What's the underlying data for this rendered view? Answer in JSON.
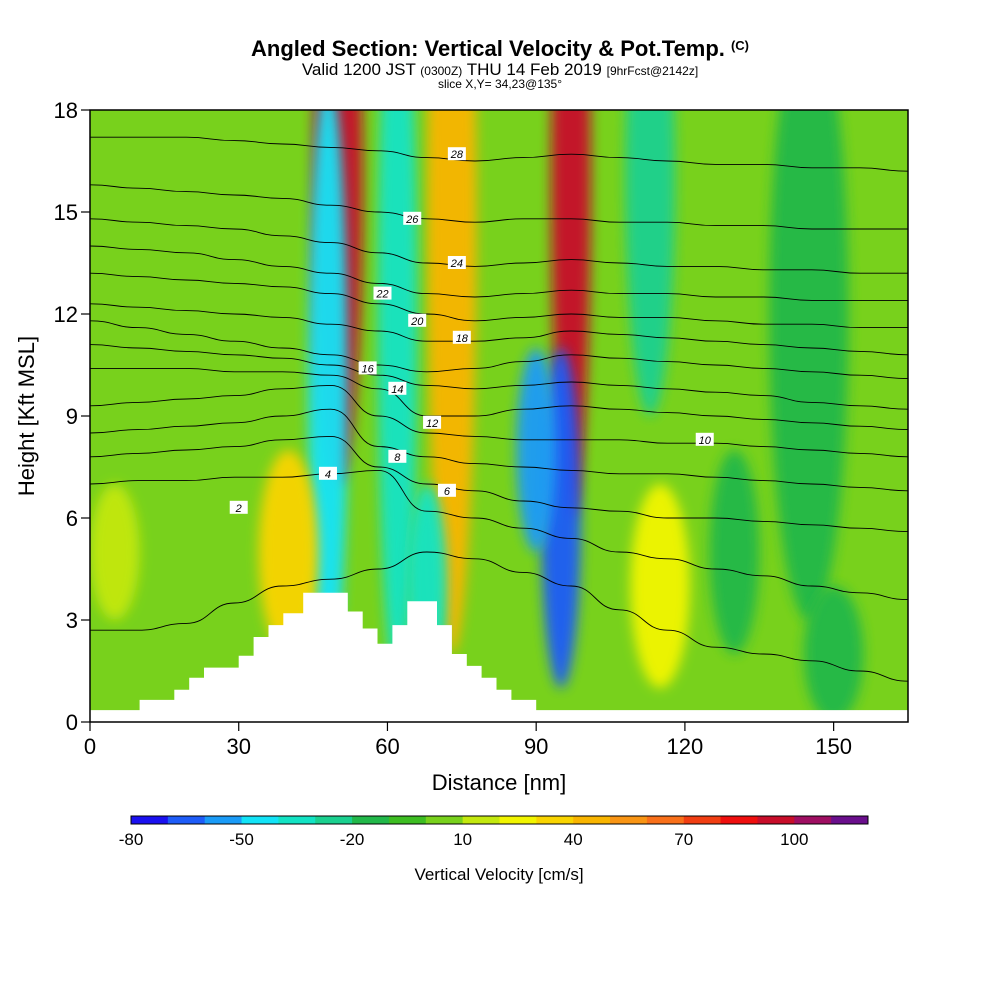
{
  "header": {
    "title": "Angled Section: Vertical Velocity & Pot.Temp.",
    "copyright": "(C)",
    "valid_prefix": "Valid 1200 JST",
    "valid_utc": "(0300Z)",
    "valid_suffix": "THU 14 Feb 2019",
    "forecast": "[9hrFcst@2142z]",
    "slice": "slice X,Y= 34,23@135°"
  },
  "chart_data": {
    "type": "heatmap",
    "title": "Angled Section: Vertical Velocity & Pot.Temp.",
    "xlabel": "Distance [nm]",
    "ylabel": "Height [Kft MSL]",
    "xlim": [
      0,
      165
    ],
    "ylim": [
      0,
      18
    ],
    "xticks": [
      0,
      30,
      60,
      90,
      120,
      150
    ],
    "yticks": [
      0,
      3,
      6,
      9,
      12,
      15,
      18
    ],
    "colorbar": {
      "label": "Vertical Velocity [cm/s]",
      "tick_labels": [
        -80,
        -50,
        -20,
        10,
        40,
        70,
        100
      ],
      "levels": [
        -80,
        -70,
        -60,
        -50,
        -40,
        -30,
        -20,
        -10,
        0,
        10,
        20,
        30,
        40,
        50,
        60,
        70,
        80,
        90,
        100,
        110
      ],
      "colors": [
        "#1a10f0",
        "#1e5cf8",
        "#1a9bf7",
        "#12e3f7",
        "#12e3c4",
        "#1ad08f",
        "#22b84a",
        "#3dbd22",
        "#78d11c",
        "#c3e80e",
        "#f2f500",
        "#f9d400",
        "#f9b500",
        "#f99514",
        "#f9701a",
        "#f13e12",
        "#ef0e0e",
        "#c80d2a",
        "#9f0e62",
        "#6a0e8c"
      ]
    },
    "terrain_nm_kft": [
      [
        0,
        0.35
      ],
      [
        10,
        0.35
      ],
      [
        10,
        0.65
      ],
      [
        17,
        0.65
      ],
      [
        17,
        0.95
      ],
      [
        20,
        0.95
      ],
      [
        20,
        1.3
      ],
      [
        23,
        1.3
      ],
      [
        23,
        1.6
      ],
      [
        30,
        1.6
      ],
      [
        30,
        1.95
      ],
      [
        33,
        1.95
      ],
      [
        33,
        2.5
      ],
      [
        36,
        2.5
      ],
      [
        36,
        2.85
      ],
      [
        39,
        2.85
      ],
      [
        39,
        3.2
      ],
      [
        43,
        3.2
      ],
      [
        43,
        3.8
      ],
      [
        52,
        3.8
      ],
      [
        52,
        3.25
      ],
      [
        55,
        3.25
      ],
      [
        55,
        2.75
      ],
      [
        58,
        2.75
      ],
      [
        58,
        2.3
      ],
      [
        61,
        2.3
      ],
      [
        61,
        2.85
      ],
      [
        64,
        2.85
      ],
      [
        64,
        3.55
      ],
      [
        70,
        3.55
      ],
      [
        70,
        2.85
      ],
      [
        73,
        2.85
      ],
      [
        73,
        2.0
      ],
      [
        76,
        2.0
      ],
      [
        76,
        1.65
      ],
      [
        79,
        1.65
      ],
      [
        79,
        1.3
      ],
      [
        82,
        1.3
      ],
      [
        82,
        0.95
      ],
      [
        85,
        0.95
      ],
      [
        85,
        0.65
      ],
      [
        90,
        0.65
      ],
      [
        90,
        0.35
      ],
      [
        165,
        0.35
      ]
    ],
    "velocity_features": [
      {
        "x": 50,
        "z": 16,
        "w": 5,
        "h": 9,
        "value": 90
      },
      {
        "x": 97,
        "z": 16,
        "w": 4,
        "h": 10,
        "value": 90
      },
      {
        "x": 73,
        "z": 15,
        "w": 5,
        "h": 13,
        "value": 40
      },
      {
        "x": 48,
        "z": 10,
        "w": 4,
        "h": 9,
        "value": -45
      },
      {
        "x": 62,
        "z": 12,
        "w": 4,
        "h": 11,
        "value": -40
      },
      {
        "x": 95,
        "z": 6,
        "w": 4,
        "h": 5,
        "value": -70
      },
      {
        "x": 90,
        "z": 8,
        "w": 4,
        "h": 3,
        "value": -55
      },
      {
        "x": 68,
        "z": 4,
        "w": 4,
        "h": 3,
        "value": -40
      },
      {
        "x": 40,
        "z": 5,
        "w": 6,
        "h": 3,
        "value": 30
      },
      {
        "x": 115,
        "z": 4,
        "w": 6,
        "h": 3,
        "value": 20
      },
      {
        "x": 113,
        "z": 16,
        "w": 5,
        "h": 7,
        "value": -30
      },
      {
        "x": 145,
        "z": 12,
        "w": 8,
        "h": 9,
        "value": -15
      },
      {
        "x": 5,
        "z": 5,
        "w": 5,
        "h": 2,
        "value": 15
      },
      {
        "x": 130,
        "z": 5,
        "w": 5,
        "h": 3,
        "value": -15
      },
      {
        "x": 150,
        "z": 2,
        "w": 6,
        "h": 2,
        "value": -20
      }
    ],
    "isentropes": [
      {
        "label": "2",
        "z": [
          2.7,
          2.7,
          2.9,
          3.5,
          4.0,
          4.2,
          4.5,
          5.0,
          4.8,
          4.4,
          4.0,
          3.3,
          2.7,
          2.2,
          2.0,
          1.8,
          1.5,
          1.2
        ],
        "label_at": [
          30,
          6.3
        ]
      },
      {
        "label": "4",
        "z": [
          7.0,
          7.1,
          7.1,
          7.2,
          7.2,
          7.3,
          7.4,
          6.2,
          6.0,
          5.7,
          5.4,
          5.0,
          4.8,
          4.5,
          4.3,
          4.0,
          3.8,
          3.6
        ],
        "label_at": [
          48,
          7.3
        ]
      },
      {
        "label": "6",
        "z": [
          7.8,
          7.9,
          8.0,
          8.1,
          8.3,
          8.4,
          7.5,
          7.0,
          6.8,
          6.5,
          6.3,
          6.2,
          6.0,
          6.0,
          5.9,
          5.8,
          5.7,
          5.6
        ],
        "label_at": [
          72,
          6.8
        ]
      },
      {
        "label": "8",
        "z": [
          8.5,
          8.6,
          8.7,
          8.8,
          9.0,
          9.2,
          8.1,
          7.8,
          7.6,
          7.5,
          7.4,
          7.3,
          7.3,
          7.2,
          7.1,
          7.0,
          6.9,
          6.8
        ],
        "label_at": [
          62,
          7.8
        ]
      },
      {
        "label": "10",
        "z": [
          9.3,
          9.4,
          9.5,
          9.6,
          9.8,
          9.9,
          9.0,
          8.5,
          8.4,
          8.3,
          8.3,
          8.3,
          8.2,
          8.2,
          8.1,
          8.0,
          7.9,
          7.8
        ],
        "label_at": [
          124,
          8.3
        ]
      },
      {
        "label": "12",
        "z": [
          10.4,
          10.4,
          10.4,
          10.3,
          10.3,
          10.2,
          9.8,
          9.0,
          9.0,
          9.2,
          9.3,
          9.2,
          9.1,
          9.0,
          8.9,
          8.8,
          8.7,
          8.6
        ],
        "label_at": [
          69,
          8.8
        ]
      },
      {
        "label": "14",
        "z": [
          11.1,
          11.0,
          10.9,
          10.8,
          10.7,
          10.5,
          10.2,
          9.9,
          9.8,
          9.9,
          10.0,
          9.9,
          9.8,
          9.7,
          9.6,
          9.4,
          9.3,
          9.2
        ],
        "label_at": [
          62,
          9.8
        ]
      },
      {
        "label": "16",
        "z": [
          11.8,
          11.6,
          11.4,
          11.2,
          11.0,
          10.8,
          10.5,
          10.3,
          10.4,
          10.6,
          10.8,
          10.7,
          10.6,
          10.5,
          10.4,
          10.3,
          10.2,
          10.1
        ],
        "label_at": [
          56,
          10.4
        ]
      },
      {
        "label": "18",
        "z": [
          12.3,
          12.2,
          12.1,
          12.0,
          11.9,
          11.7,
          11.5,
          11.2,
          11.2,
          11.3,
          11.5,
          11.4,
          11.3,
          11.2,
          11.1,
          11.0,
          10.9,
          10.8
        ],
        "label_at": [
          75,
          11.3
        ]
      },
      {
        "label": "20",
        "z": [
          13.2,
          13.1,
          13.0,
          12.9,
          12.8,
          12.6,
          12.3,
          12.0,
          11.8,
          11.9,
          12.0,
          11.9,
          11.9,
          11.8,
          11.7,
          11.7,
          11.6,
          11.6
        ],
        "label_at": [
          66,
          11.8
        ]
      },
      {
        "label": "22",
        "z": [
          14.0,
          13.9,
          13.8,
          13.6,
          13.4,
          13.2,
          12.9,
          12.6,
          12.5,
          12.6,
          12.7,
          12.6,
          12.6,
          12.5,
          12.5,
          12.4,
          12.4,
          12.4
        ],
        "label_at": [
          59,
          12.6
        ]
      },
      {
        "label": "24",
        "z": [
          14.8,
          14.7,
          14.6,
          14.5,
          14.3,
          14.1,
          13.8,
          13.5,
          13.4,
          13.5,
          13.6,
          13.5,
          13.4,
          13.4,
          13.3,
          13.3,
          13.2,
          13.2
        ],
        "label_at": [
          74,
          13.5
        ]
      },
      {
        "label": "26",
        "z": [
          15.8,
          15.7,
          15.6,
          15.5,
          15.4,
          15.2,
          15.0,
          14.8,
          14.7,
          14.8,
          14.8,
          14.7,
          14.7,
          14.6,
          14.6,
          14.5,
          14.5,
          14.5
        ],
        "label_at": [
          65,
          14.8
        ]
      },
      {
        "label": "28",
        "z": [
          17.2,
          17.2,
          17.2,
          17.1,
          17.0,
          16.9,
          16.8,
          16.6,
          16.5,
          16.6,
          16.7,
          16.6,
          16.5,
          16.4,
          16.4,
          16.3,
          16.3,
          16.2
        ],
        "label_at": [
          74,
          16.7
        ]
      }
    ]
  }
}
